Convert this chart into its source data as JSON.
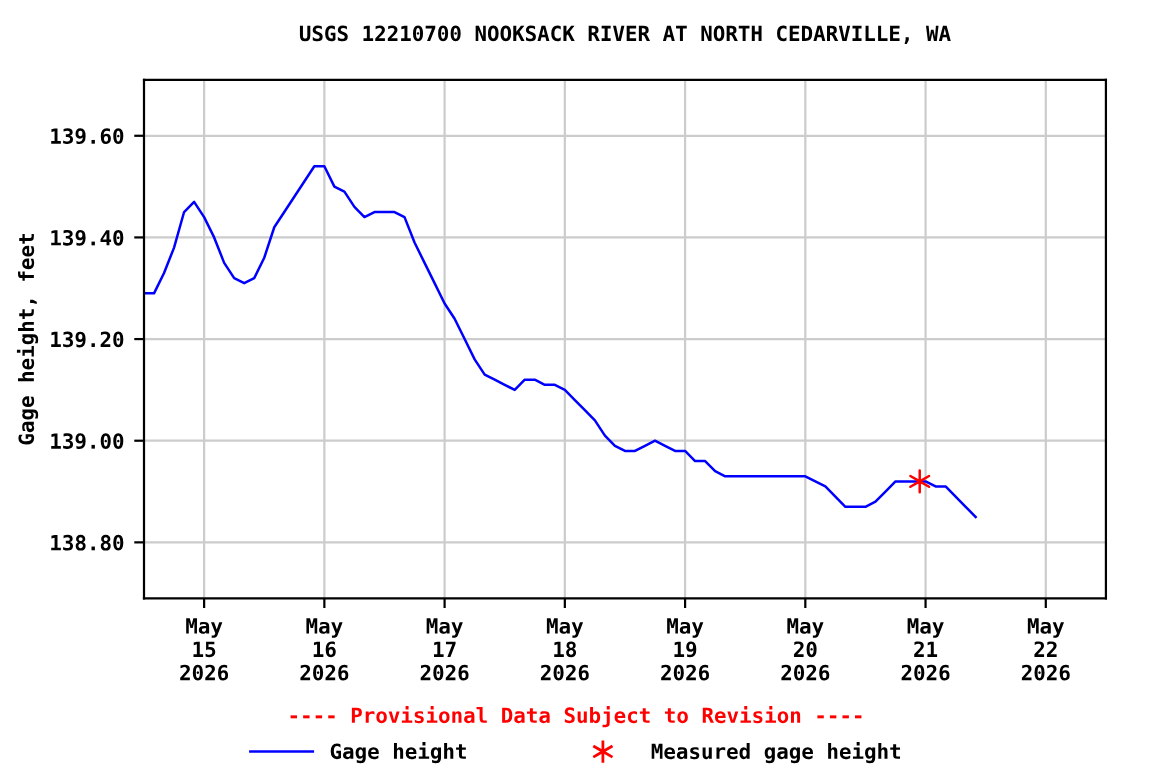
{
  "chart_data": {
    "type": "line",
    "title": "USGS 12210700 NOOKSACK RIVER AT NORTH CEDARVILLE, WA",
    "ylabel": "Gage height, feet",
    "annotations": [
      "---- Provisional Data Subject to Revision ----"
    ],
    "xlim": [
      "2026-05-14T12:00",
      "2026-05-22T12:00"
    ],
    "xticks": [
      {
        "value": "2026-05-15",
        "label": "May\n15\n2026"
      },
      {
        "value": "2026-05-16",
        "label": "May\n16\n2026"
      },
      {
        "value": "2026-05-17",
        "label": "May\n17\n2026"
      },
      {
        "value": "2026-05-18",
        "label": "May\n18\n2026"
      },
      {
        "value": "2026-05-19",
        "label": "May\n19\n2026"
      },
      {
        "value": "2026-05-20",
        "label": "May\n20\n2026"
      },
      {
        "value": "2026-05-21",
        "label": "May\n21\n2026"
      },
      {
        "value": "2026-05-22",
        "label": "May\n22\n2026"
      }
    ],
    "ylim": [
      138.69,
      139.71
    ],
    "yticks": [
      {
        "value": 138.8,
        "label": "138.80"
      },
      {
        "value": 139.0,
        "label": "139.00"
      },
      {
        "value": 139.2,
        "label": "139.20"
      },
      {
        "value": 139.4,
        "label": "139.40"
      },
      {
        "value": 139.6,
        "label": "139.60"
      }
    ],
    "grid": true,
    "legend": "bottom",
    "series": [
      {
        "name": "Gage height",
        "color": "#0000ff",
        "marker": "none",
        "line_style": "solid",
        "x": [
          "2026-05-14T12:00",
          "2026-05-14T14:00",
          "2026-05-14T16:00",
          "2026-05-14T18:00",
          "2026-05-14T20:00",
          "2026-05-14T22:00",
          "2026-05-15T00:00",
          "2026-05-15T02:00",
          "2026-05-15T04:00",
          "2026-05-15T06:00",
          "2026-05-15T08:00",
          "2026-05-15T10:00",
          "2026-05-15T12:00",
          "2026-05-15T14:00",
          "2026-05-15T16:00",
          "2026-05-15T18:00",
          "2026-05-15T20:00",
          "2026-05-15T22:00",
          "2026-05-16T00:00",
          "2026-05-16T02:00",
          "2026-05-16T04:00",
          "2026-05-16T06:00",
          "2026-05-16T08:00",
          "2026-05-16T10:00",
          "2026-05-16T12:00",
          "2026-05-16T14:00",
          "2026-05-16T16:00",
          "2026-05-16T18:00",
          "2026-05-16T20:00",
          "2026-05-16T22:00",
          "2026-05-17T00:00",
          "2026-05-17T02:00",
          "2026-05-17T04:00",
          "2026-05-17T06:00",
          "2026-05-17T08:00",
          "2026-05-17T10:00",
          "2026-05-17T12:00",
          "2026-05-17T14:00",
          "2026-05-17T16:00",
          "2026-05-17T18:00",
          "2026-05-17T20:00",
          "2026-05-17T22:00",
          "2026-05-18T00:00",
          "2026-05-18T02:00",
          "2026-05-18T04:00",
          "2026-05-18T06:00",
          "2026-05-18T08:00",
          "2026-05-18T10:00",
          "2026-05-18T12:00",
          "2026-05-18T14:00",
          "2026-05-18T16:00",
          "2026-05-18T18:00",
          "2026-05-18T20:00",
          "2026-05-18T22:00",
          "2026-05-19T00:00",
          "2026-05-19T02:00",
          "2026-05-19T04:00",
          "2026-05-19T06:00",
          "2026-05-19T08:00",
          "2026-05-19T10:00",
          "2026-05-19T12:00",
          "2026-05-19T14:00",
          "2026-05-19T16:00",
          "2026-05-19T18:00",
          "2026-05-19T20:00",
          "2026-05-19T22:00",
          "2026-05-20T00:00",
          "2026-05-20T02:00",
          "2026-05-20T04:00",
          "2026-05-20T06:00",
          "2026-05-20T08:00",
          "2026-05-20T10:00",
          "2026-05-20T12:00",
          "2026-05-20T14:00",
          "2026-05-20T16:00",
          "2026-05-20T18:00",
          "2026-05-20T20:00",
          "2026-05-20T22:00",
          "2026-05-21T00:00",
          "2026-05-21T02:00",
          "2026-05-21T04:00",
          "2026-05-21T06:00",
          "2026-05-21T08:00",
          "2026-05-21T10:00"
        ],
        "values": [
          139.29,
          139.29,
          139.33,
          139.38,
          139.45,
          139.47,
          139.44,
          139.4,
          139.35,
          139.32,
          139.31,
          139.32,
          139.36,
          139.42,
          139.45,
          139.48,
          139.51,
          139.54,
          139.54,
          139.5,
          139.49,
          139.46,
          139.44,
          139.45,
          139.45,
          139.45,
          139.44,
          139.39,
          139.35,
          139.31,
          139.27,
          139.24,
          139.2,
          139.16,
          139.13,
          139.12,
          139.11,
          139.1,
          139.12,
          139.12,
          139.11,
          139.11,
          139.1,
          139.08,
          139.06,
          139.04,
          139.01,
          138.99,
          138.98,
          138.98,
          138.99,
          139.0,
          138.99,
          138.98,
          138.98,
          138.96,
          138.96,
          138.94,
          138.93,
          138.93,
          138.93,
          138.93,
          138.93,
          138.93,
          138.93,
          138.93,
          138.93,
          138.92,
          138.91,
          138.89,
          138.87,
          138.87,
          138.87,
          138.88,
          138.9,
          138.92,
          138.92,
          138.92,
          138.92,
          138.91,
          138.91,
          138.89,
          138.87,
          138.85
        ]
      },
      {
        "name": "Measured gage height",
        "type": "scatter",
        "color": "#ff0000",
        "marker": "cross",
        "x": [
          "2026-05-20T22:50"
        ],
        "values": [
          138.92
        ]
      }
    ]
  }
}
